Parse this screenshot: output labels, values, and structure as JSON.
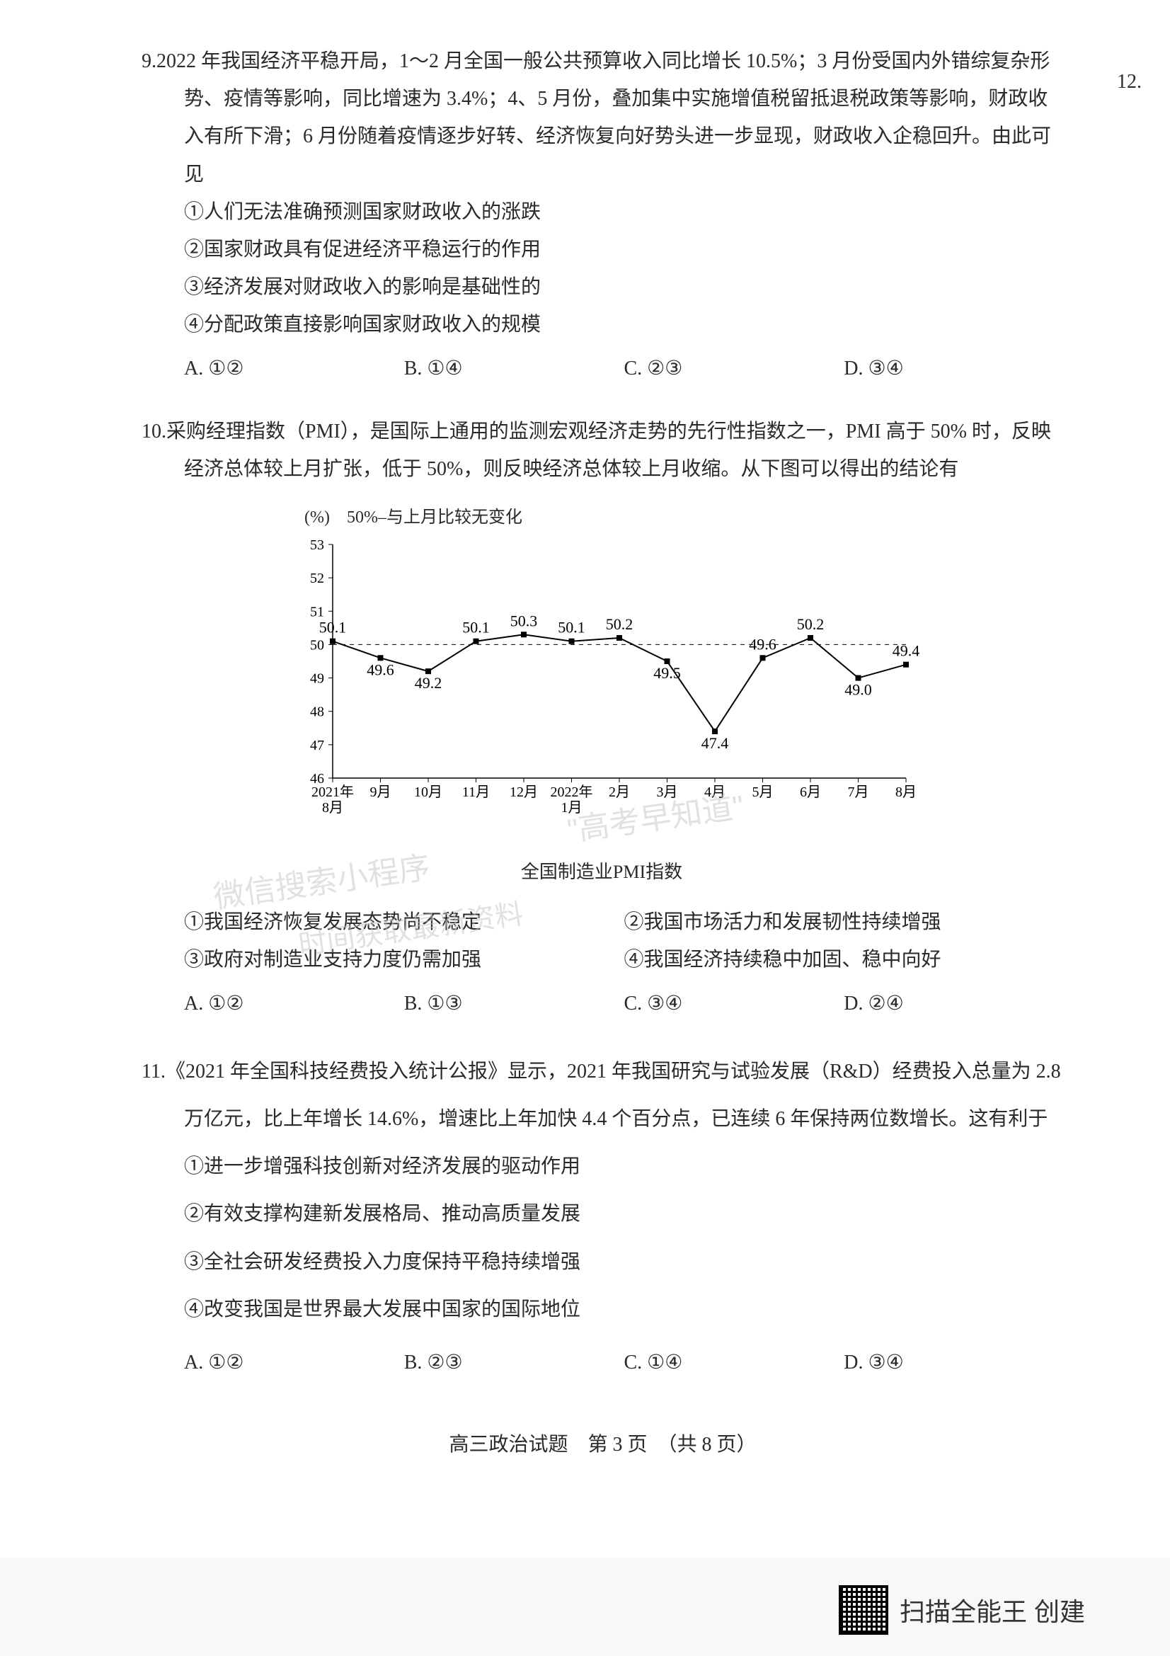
{
  "margin_note": "12.",
  "q9": {
    "number": "9.",
    "stem": "2022 年我国经济平稳开局，1～2 月全国一般公共预算收入同比增长 10.5%；3 月份受国内外错综复杂形势、疫情等影响，同比增速为 3.4%；4、5 月份，叠加集中实施增值税留抵退税政策等影响，财政收入有所下滑；6 月份随着疫情逐步好转、经济恢复向好势头进一步显现，财政收入企稳回升。由此可见",
    "s1": "①人们无法准确预测国家财政收入的涨跌",
    "s2": "②国家财政具有促进经济平稳运行的作用",
    "s3": "③经济发展对财政收入的影响是基础性的",
    "s4": "④分配政策直接影响国家财政收入的规模",
    "optA": "A. ①②",
    "optB": "B. ①④",
    "optC": "C. ②③",
    "optD": "D. ③④"
  },
  "q10": {
    "number": "10.",
    "stem": "采购经理指数（PMI），是国际上通用的监测宏观经济走势的先行性指数之一，PMI 高于 50% 时，反映经济总体较上月扩张，低于 50%，则反映经济总体较上月收缩。从下图可以得出的结论有",
    "chart": {
      "top_label": "(%)　50%–与上月比较无变化",
      "type": "line",
      "ylim": [
        46,
        53
      ],
      "ytick_step": 1,
      "yticks": [
        "46",
        "47",
        "48",
        "49",
        "50",
        "51",
        "52",
        "53"
      ],
      "x_labels": [
        "2021年\n8月",
        "9月",
        "10月",
        "11月",
        "12月",
        "2022年\n1月",
        "2月",
        "3月",
        "4月",
        "5月",
        "6月",
        "7月",
        "8月"
      ],
      "values": [
        50.1,
        49.6,
        49.2,
        50.1,
        50.3,
        50.1,
        50.2,
        49.5,
        47.4,
        49.6,
        50.2,
        49.0,
        49.4
      ],
      "line_color": "#000000",
      "marker": "square",
      "marker_size": 8,
      "background_color": "#ffffff",
      "caption": "全国制造业PMI指数",
      "axis_fontsize": 20,
      "label_fontsize": 22
    },
    "s1": "①我国经济恢复发展态势尚不稳定",
    "s2": "②我国市场活力和发展韧性持续增强",
    "s3": "③政府对制造业支持力度仍需加强",
    "s4": "④我国经济持续稳中加固、稳中向好",
    "optA": "A. ①②",
    "optB": "B. ①③",
    "optC": "C. ③④",
    "optD": "D. ②④"
  },
  "q11": {
    "number": "11.",
    "stem": "《2021 年全国科技经费投入统计公报》显示，2021 年我国研究与试验发展（R&D）经费投入总量为 2.8 万亿元，比上年增长 14.6%，增速比上年加快 4.4 个百分点，已连续 6 年保持两位数增长。这有利于",
    "s1": "①进一步增强科技创新对经济发展的驱动作用",
    "s2": "②有效支撑构建新发展格局、推动高质量发展",
    "s3": "③全社会研发经费投入力度保持平稳持续增强",
    "s4": "④改变我国是世界最大发展中国家的国际地位",
    "optA": "A. ①②",
    "optB": "B. ②③",
    "optC": "C. ①④",
    "optD": "D. ③④"
  },
  "footer": "高三政治试题　第 3 页　（共 8 页）",
  "scan_text": "扫描全能王  创建",
  "watermark1": "微信搜索小程序",
  "watermark2": "\"高考早知道\"",
  "watermark3": "时间获取最新资料"
}
